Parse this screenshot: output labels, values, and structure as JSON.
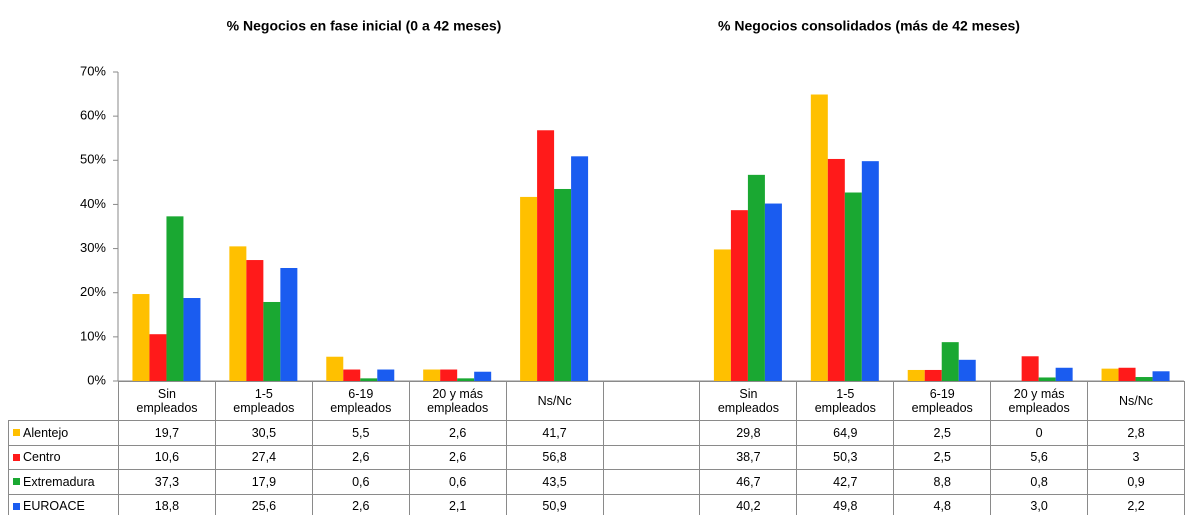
{
  "chart_data": {
    "type": "bar",
    "titles": [
      "% Negocios en fase inicial (0 a 42 meses)",
      "% Negocios consolidados (más de 42 meses)"
    ],
    "categories": [
      "Sin empleados",
      "1-5 empleados",
      "6-19 empleados",
      "20 y más empleados",
      "Ns/Nc",
      null,
      "Sin empleados",
      "1-5 empleados",
      "6-19 empleados",
      "20 y más empleados",
      "Ns/Nc"
    ],
    "series": [
      {
        "name": "Alentejo",
        "color": "#ffc000",
        "values": [
          19.7,
          30.5,
          5.5,
          2.6,
          41.7,
          null,
          29.8,
          64.9,
          2.5,
          0,
          2.8
        ],
        "value_labels": [
          "19,7",
          "30,5",
          "5,5",
          "2,6",
          "41,7",
          null,
          "29,8",
          "64,9",
          "2,5",
          "0",
          "2,8"
        ]
      },
      {
        "name": "Centro",
        "color": "#ff1a1a",
        "values": [
          10.6,
          27.4,
          2.6,
          2.6,
          56.8,
          null,
          38.7,
          50.3,
          2.5,
          5.6,
          3
        ],
        "value_labels": [
          "10,6",
          "27,4",
          "2,6",
          "2,6",
          "56,8",
          null,
          "38,7",
          "50,3",
          "2,5",
          "5,6",
          "3"
        ]
      },
      {
        "name": "Extremadura",
        "color": "#1aa832",
        "values": [
          37.3,
          17.9,
          0.6,
          0.6,
          43.5,
          null,
          46.7,
          42.7,
          8.8,
          0.8,
          0.9
        ],
        "value_labels": [
          "37,3",
          "17,9",
          "0,6",
          "0,6",
          "43,5",
          null,
          "46,7",
          "42,7",
          "8,8",
          "0,8",
          "0,9"
        ]
      },
      {
        "name": "EUROACE",
        "color": "#1a5cf0",
        "values": [
          18.8,
          25.6,
          2.6,
          2.1,
          50.9,
          null,
          40.2,
          49.8,
          4.8,
          3.0,
          2.2
        ],
        "value_labels": [
          "18,8",
          "25,6",
          "2,6",
          "2,1",
          "50,9",
          null,
          "40,2",
          "49,8",
          "4,8",
          "3,0",
          "2,2"
        ]
      }
    ],
    "ylim": [
      0,
      70
    ],
    "yticks": [
      {
        "value": 0,
        "label": "0%"
      },
      {
        "value": 10,
        "label": "10%"
      },
      {
        "value": 20,
        "label": "20%"
      },
      {
        "value": 30,
        "label": "30%"
      },
      {
        "value": 40,
        "label": "40%"
      },
      {
        "value": 50,
        "label": "50%"
      },
      {
        "value": 60,
        "label": "60%"
      },
      {
        "value": 70,
        "label": "70%"
      }
    ]
  }
}
